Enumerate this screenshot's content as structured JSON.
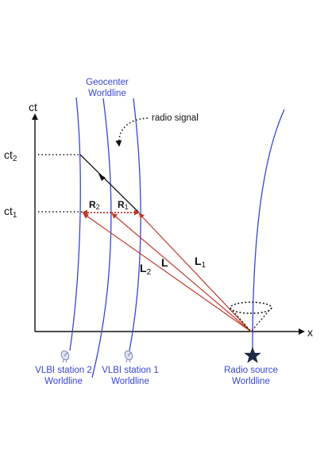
{
  "axes": {
    "y_label": "ct",
    "x_label": "x",
    "tick_ct2_main": "ct",
    "tick_ct2_sub": "2",
    "tick_ct1_main": "ct",
    "tick_ct1_sub": "1"
  },
  "labels": {
    "geocenter_line1": "Geocenter",
    "geocenter_line2": "Worldline",
    "radio_signal": "radio signal",
    "station2_line1": "VLBI station 2",
    "station2_line2": "Worldline",
    "station1_line1": "VLBI station 1",
    "station1_line2": "Worldline",
    "source_line1": "Radio source",
    "source_line2": "Worldline"
  },
  "vectors": {
    "R2_main": "R",
    "R2_sub": "2",
    "R1_main": "R",
    "R1_sub": "1",
    "L2_main": "L",
    "L2_sub": "2",
    "L_main": "L",
    "L1_main": "L",
    "L1_sub": "1"
  },
  "colors": {
    "worldline": "#3a45d6",
    "vector": "#c0392b",
    "axis": "#111111"
  },
  "icons": {
    "station": "satellite-dish-icon",
    "source": "star-icon"
  }
}
